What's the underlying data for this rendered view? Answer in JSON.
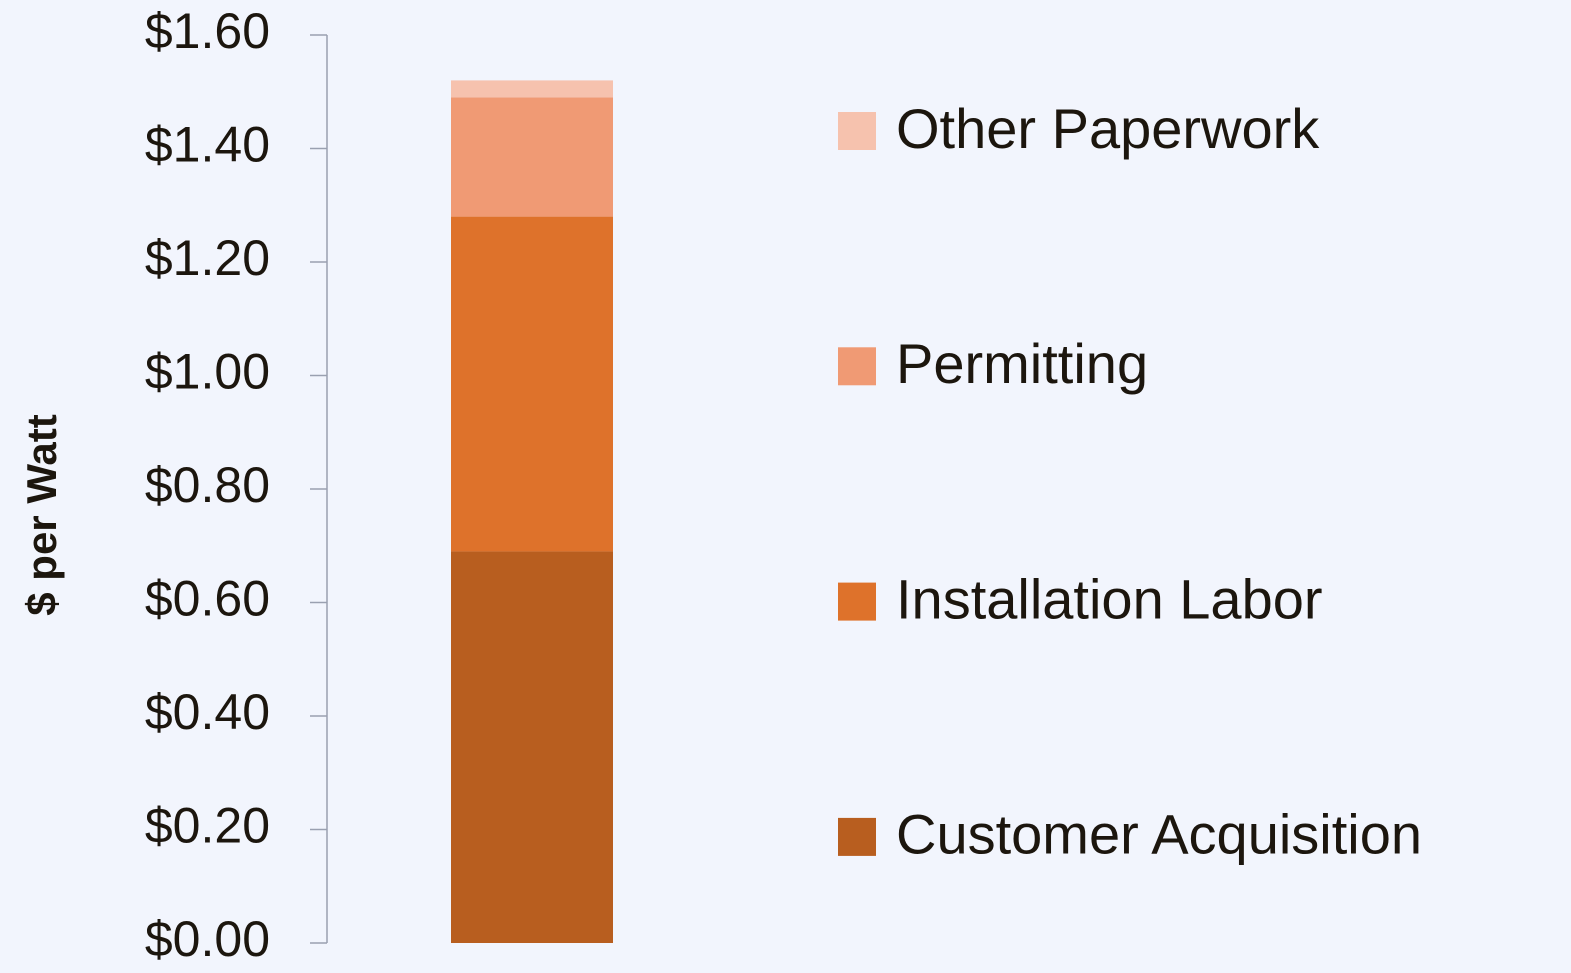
{
  "chart_data": {
    "type": "stacked_bar",
    "categories": [
      null
    ],
    "y_label": "$ per Watt",
    "series": [
      {
        "name": "Customer Acquisition",
        "color": "#b85e1f",
        "values": [
          0.69
        ]
      },
      {
        "name": "Installation Labor",
        "color": "#de722b",
        "values": [
          0.59
        ]
      },
      {
        "name": "Permitting",
        "color": "#f09a74",
        "values": [
          0.21
        ]
      },
      {
        "name": "Other Paperwork",
        "color": "#f6c2ae",
        "values": [
          0.03
        ]
      }
    ],
    "ylim": [
      0,
      1.6
    ],
    "yticks": [
      {
        "value": 0,
        "label": "$0.00"
      },
      {
        "value": 0.2,
        "label": "$0.20"
      },
      {
        "value": 0.4,
        "label": "$0.40"
      },
      {
        "value": 0.6,
        "label": "$0.60"
      },
      {
        "value": 0.8,
        "label": "$0.80"
      },
      {
        "value": 1.0,
        "label": "$1.00"
      },
      {
        "value": 1.2,
        "label": "$1.20"
      },
      {
        "value": 1.4,
        "label": "$1.40"
      },
      {
        "value": 1.6,
        "label": "$1.60"
      }
    ],
    "grid": false,
    "legend": "right"
  }
}
